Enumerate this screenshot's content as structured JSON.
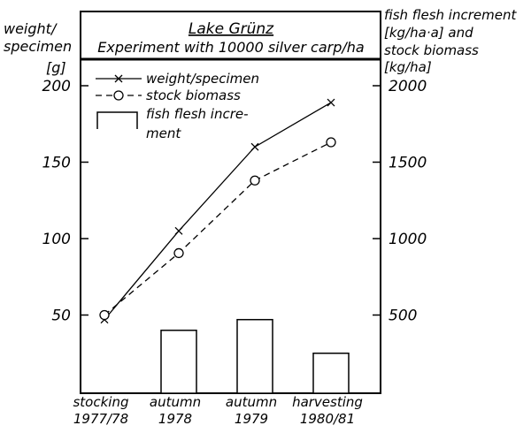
{
  "chart_data": {
    "type": "bar+line",
    "title": "Lake Grünz",
    "subtitle": "Experiment with 10000 silver carp/ha",
    "categories": [
      "stocking 1977/78",
      "autumn 1978",
      "autumn 1979",
      "harvesting 1980/81"
    ],
    "category_lines": [
      [
        "stocking",
        "1977/78"
      ],
      [
        "autumn",
        "1978"
      ],
      [
        "autumn",
        "1979"
      ],
      [
        "harvesting",
        "1980/81"
      ]
    ],
    "y_left": {
      "label_lines": [
        "weight/",
        "specimen",
        "[g]"
      ],
      "range": [
        0,
        200
      ],
      "ticks": [
        50,
        100,
        150,
        200
      ]
    },
    "y_right": {
      "label_lines": [
        "fish flesh increment",
        "[kg/ha·a] and",
        "stock biomass",
        "[kg/ha]"
      ],
      "range": [
        0,
        2000
      ],
      "ticks": [
        500,
        1000,
        1500,
        2000
      ]
    },
    "series": [
      {
        "name": "weight/specimen",
        "kind": "line",
        "marker": "x",
        "dash": "solid",
        "axis": "left",
        "x": [
          0,
          1,
          2,
          3
        ],
        "values": [
          47,
          105,
          160,
          189
        ]
      },
      {
        "name": "stock biomass",
        "kind": "line",
        "marker": "circle",
        "dash": "dashed",
        "axis": "right",
        "x": [
          0,
          1,
          2,
          3
        ],
        "values": [
          500,
          905,
          1380,
          1630
        ]
      },
      {
        "name": "fish flesh increment",
        "name_lines": [
          "fish flesh incre-",
          "ment"
        ],
        "kind": "bar",
        "axis": "right",
        "x": [
          1,
          2,
          3
        ],
        "values": [
          400,
          470,
          250
        ]
      }
    ],
    "legend_position": "top-left",
    "grid": false
  }
}
